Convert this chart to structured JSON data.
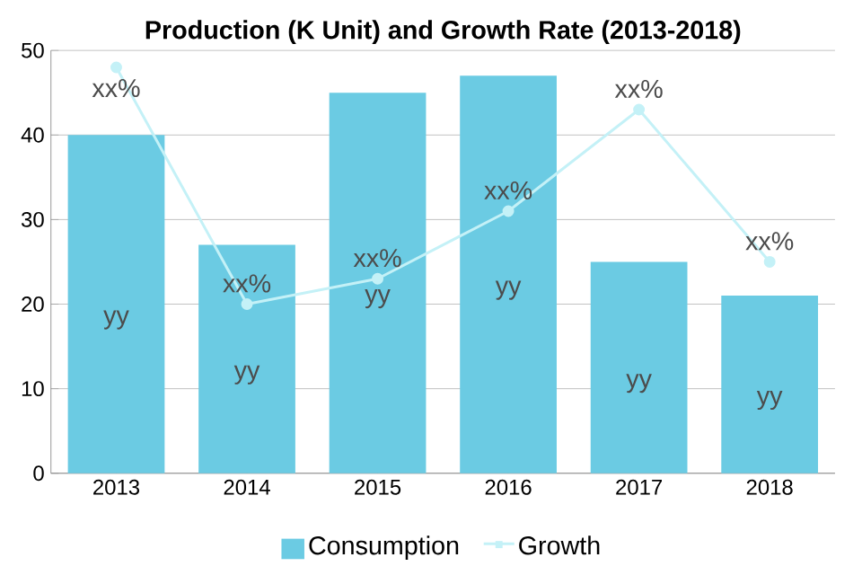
{
  "chart_data": {
    "type": "bar",
    "title": "Production (K Unit) and Growth Rate (2013-2018)",
    "categories": [
      "2013",
      "2014",
      "2015",
      "2016",
      "2017",
      "2018"
    ],
    "series": [
      {
        "name": "Consumption",
        "color": "#6bcbe3",
        "values": [
          40,
          27,
          45,
          47,
          25,
          21
        ],
        "value_labels": [
          "yy",
          "yy",
          "yy",
          "yy",
          "yy",
          "yy"
        ]
      },
      {
        "name": "Growth",
        "type": "line",
        "color": "#c4f1f7",
        "marker": "circle",
        "values": [
          48,
          20,
          23,
          31,
          43,
          25
        ],
        "value_labels": [
          "xx%",
          "xx%",
          "xx%",
          "xx%",
          "xx%",
          "xx%"
        ]
      }
    ],
    "ylim": [
      0,
      50
    ],
    "yticks": [
      0,
      10,
      20,
      30,
      40,
      50
    ],
    "grid": "y",
    "legend": "bottom"
  }
}
